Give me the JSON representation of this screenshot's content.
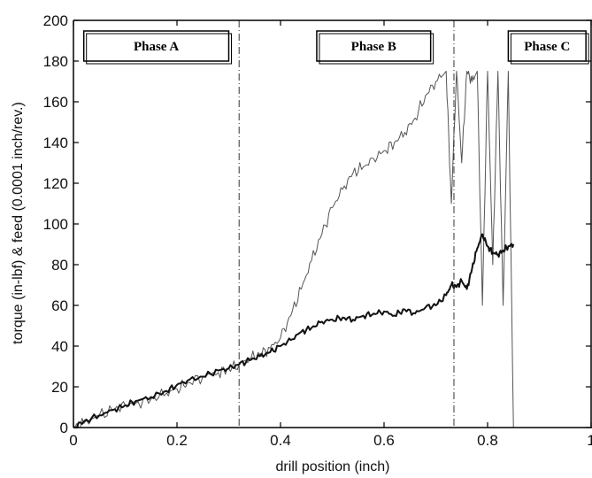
{
  "chart_data": {
    "type": "line",
    "title": "",
    "xlabel": "drill position (inch)",
    "ylabel": "torque (in-lbf) & feed (0.0001 inch/rev.)",
    "xlim": [
      0,
      1
    ],
    "ylim": [
      0,
      200
    ],
    "x_ticks": [
      "0",
      "0.2",
      "0.4",
      "0.6",
      "0.8",
      "1"
    ],
    "y_ticks": [
      "0",
      "20",
      "40",
      "60",
      "80",
      "100",
      "120",
      "140",
      "160",
      "180",
      "200"
    ],
    "grid": false,
    "annotations": [
      {
        "text": "Phase A",
        "x_range": [
          0.02,
          0.3
        ]
      },
      {
        "text": "Phase B",
        "x_range": [
          0.47,
          0.69
        ]
      },
      {
        "text": "Phase C",
        "x_range": [
          0.84,
          0.99
        ]
      }
    ],
    "markers": [
      {
        "kind": "vertical-line",
        "x": 0.32
      },
      {
        "kind": "vertical-line",
        "x": 0.735
      }
    ],
    "series": [
      {
        "color": "#555555",
        "style": "noisy-thin",
        "x": [
          0.0,
          0.02,
          0.05,
          0.08,
          0.1,
          0.12,
          0.15,
          0.18,
          0.2,
          0.22,
          0.25,
          0.28,
          0.3,
          0.32,
          0.34,
          0.36,
          0.38,
          0.4,
          0.42,
          0.44,
          0.46,
          0.48,
          0.5,
          0.52,
          0.54,
          0.56,
          0.58,
          0.6,
          0.62,
          0.64,
          0.66,
          0.68,
          0.7,
          0.72,
          0.73,
          0.74,
          0.75,
          0.76,
          0.77,
          0.78,
          0.79,
          0.8,
          0.81,
          0.82,
          0.83,
          0.84,
          0.85
        ],
        "values": [
          0,
          2,
          6,
          9,
          11,
          12,
          14,
          17,
          19,
          22,
          25,
          27,
          29,
          31,
          34,
          36,
          39,
          44,
          55,
          68,
          82,
          95,
          108,
          117,
          125,
          128,
          132,
          136,
          140,
          145,
          152,
          163,
          170,
          175,
          110,
          175,
          130,
          175,
          170,
          175,
          60,
          175,
          80,
          175,
          60,
          175,
          0
        ]
      },
      {
        "color": "#111111",
        "style": "thick",
        "x": [
          0.0,
          0.02,
          0.05,
          0.08,
          0.1,
          0.12,
          0.15,
          0.18,
          0.2,
          0.22,
          0.25,
          0.28,
          0.3,
          0.32,
          0.34,
          0.36,
          0.38,
          0.4,
          0.42,
          0.44,
          0.46,
          0.48,
          0.5,
          0.52,
          0.54,
          0.56,
          0.58,
          0.6,
          0.62,
          0.64,
          0.66,
          0.68,
          0.7,
          0.72,
          0.73,
          0.74,
          0.75,
          0.76,
          0.77,
          0.78,
          0.79,
          0.8,
          0.81,
          0.82,
          0.83,
          0.84,
          0.85
        ],
        "values": [
          0,
          3,
          6,
          9,
          11,
          13,
          15,
          18,
          21,
          23,
          25,
          28,
          29,
          31,
          33,
          35,
          37,
          40,
          43,
          47,
          49,
          52,
          53,
          54,
          53,
          55,
          56,
          57,
          55,
          58,
          56,
          59,
          60,
          65,
          70,
          69,
          72,
          68,
          78,
          88,
          95,
          89,
          86,
          85,
          87,
          89,
          90
        ]
      }
    ]
  }
}
